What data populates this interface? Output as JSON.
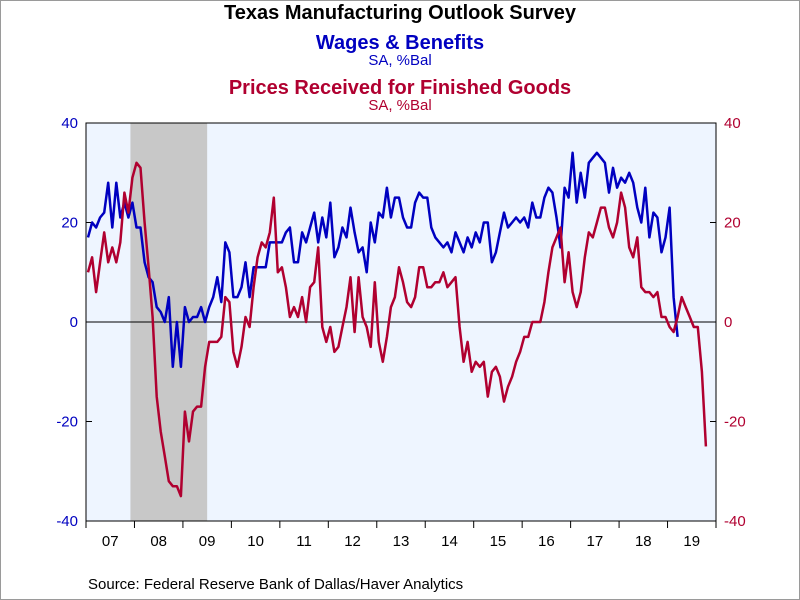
{
  "chart_data": {
    "type": "line",
    "title": "Texas Manufacturing Outlook Survey",
    "series": [
      {
        "name": "Wages & Benefits",
        "unit": "SA, %Bal",
        "axis": "left",
        "color": "#0000c0",
        "values": [
          17,
          20,
          19,
          21,
          22,
          28,
          19,
          28,
          21,
          24,
          21,
          24,
          19,
          19,
          12,
          9,
          8,
          3,
          2,
          0,
          5,
          -9,
          0,
          -9,
          3,
          0,
          1,
          1,
          3,
          0,
          3,
          5,
          9,
          4,
          16,
          14,
          5,
          5,
          7,
          12,
          5,
          11,
          11,
          11,
          11,
          16,
          16,
          16,
          16,
          18,
          19,
          12,
          12,
          18,
          16,
          19,
          22,
          16,
          21,
          17,
          24,
          13,
          15,
          19,
          17,
          23,
          18,
          14,
          15,
          10,
          20,
          16,
          22,
          21,
          27,
          21,
          25,
          25,
          21,
          19,
          19,
          24,
          26,
          25,
          25,
          19,
          17,
          16,
          15,
          16,
          14,
          18,
          16,
          14,
          17,
          15,
          18,
          16,
          20,
          20,
          12,
          14,
          18,
          22,
          19,
          20,
          21,
          20,
          21,
          19,
          24,
          21,
          21,
          25,
          27,
          26,
          21,
          15,
          27,
          25,
          34,
          24,
          30,
          25,
          32,
          33,
          34,
          33,
          32,
          26,
          31,
          27,
          29,
          28,
          30,
          28,
          23,
          20,
          27,
          17,
          22,
          21,
          14,
          17,
          23,
          5,
          -3
        ]
      },
      {
        "name": "Prices Received for Finished Goods",
        "unit": "SA, %Bal",
        "axis": "right",
        "color": "#b00030",
        "values": [
          10,
          13,
          6,
          12,
          18,
          12,
          15,
          12,
          16,
          26,
          22,
          29,
          32,
          31,
          20,
          11,
          1,
          -15,
          -22,
          -27,
          -32,
          -33,
          -33,
          -35,
          -18,
          -24,
          -18,
          -17,
          -17,
          -9,
          -4,
          -4,
          -4,
          -3,
          5,
          4,
          -6,
          -9,
          -5,
          1,
          -1,
          7,
          13,
          16,
          15,
          18,
          25,
          10,
          11,
          7,
          1,
          3,
          1,
          5,
          0,
          7,
          8,
          15,
          -1,
          -4,
          -1,
          -6,
          -5,
          -1,
          3,
          9,
          -2,
          9,
          1,
          -1,
          -5,
          8,
          -4,
          -8,
          -3,
          3,
          5,
          11,
          8,
          4,
          3,
          5,
          11,
          11,
          7,
          7,
          8,
          8,
          10,
          7,
          8,
          9,
          -1,
          -8,
          -4,
          -10,
          -8,
          -9,
          -8,
          -15,
          -10,
          -9,
          -11,
          -16,
          -13,
          -11,
          -8,
          -6,
          -3,
          -3,
          0,
          0,
          0,
          4,
          10,
          15,
          17,
          19,
          8,
          14,
          6,
          3,
          6,
          13,
          18,
          17,
          20,
          23,
          23,
          19,
          17,
          20,
          26,
          23,
          15,
          13,
          17,
          7,
          6,
          6,
          5,
          6,
          1,
          1,
          -1,
          -2,
          1,
          5,
          3,
          1,
          -1,
          -1,
          -10,
          -25
        ]
      }
    ],
    "x_start_year": 2007,
    "x_tick_labels": [
      "07",
      "08",
      "09",
      "10",
      "11",
      "12",
      "13",
      "14",
      "15",
      "16",
      "17",
      "18",
      "19"
    ],
    "y_left": {
      "min": -40,
      "max": 40,
      "ticks": [
        "40",
        "20",
        "0",
        "-20",
        "-40"
      ]
    },
    "y_right": {
      "min": -40,
      "max": 40,
      "ticks": [
        "40",
        "20",
        "0",
        "-20",
        "-40"
      ]
    },
    "recession": {
      "start": "2007-12",
      "end": "2009-06",
      "color": "#c8c8c8"
    },
    "plot_background": "#eef5ff",
    "source": "Source:  Federal Reserve Bank of Dallas/Haver Analytics"
  }
}
